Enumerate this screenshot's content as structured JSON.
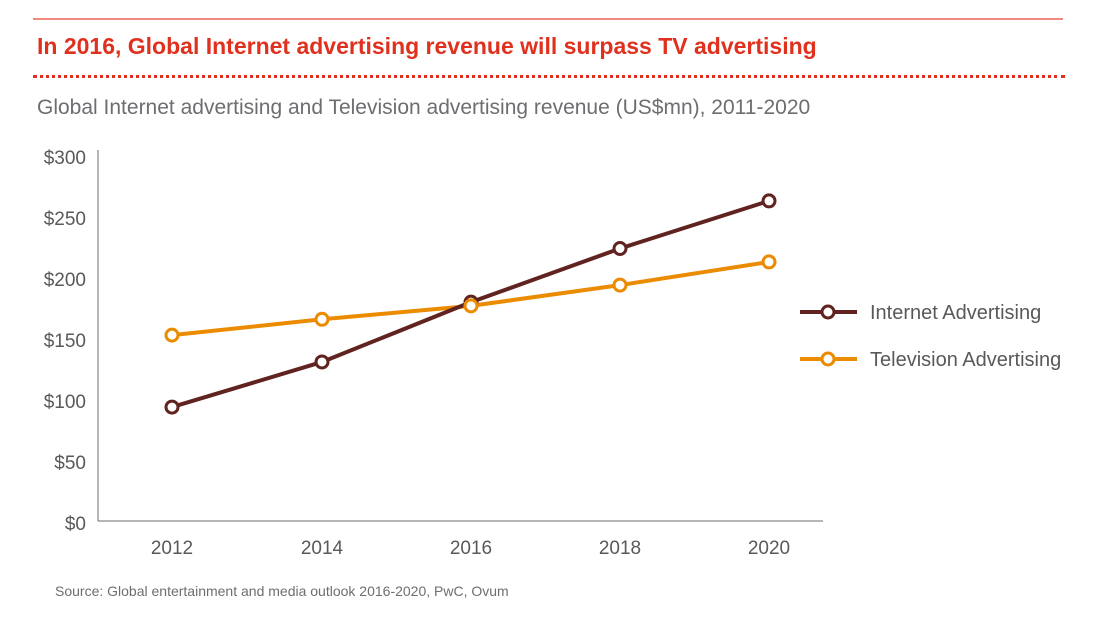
{
  "header": {
    "title": "In 2016, Global Internet advertising revenue will surpass TV advertising",
    "subtitle": "Global Internet advertising and Television advertising revenue (US$mn), 2011-2020"
  },
  "footer": {
    "source": "Source: Global entertainment and media outlook 2016-2020, PwC, Ovum"
  },
  "chart_data": {
    "type": "line",
    "title": "Global Internet advertising and Television advertising revenue (US$mn), 2011-2020",
    "categories": [
      "2012",
      "2014",
      "2016",
      "2018",
      "2020"
    ],
    "yticks": [
      "$0",
      "$50",
      "$100",
      "$150",
      "$200",
      "$250",
      "$300"
    ],
    "ylim": [
      0,
      300
    ],
    "grid": false,
    "legend": "right",
    "series": [
      {
        "name": "Internet Advertising",
        "color": "#602320",
        "values": [
          95,
          132,
          181,
          225,
          264
        ]
      },
      {
        "name": "Television Advertising",
        "color": "#eb8c00",
        "values": [
          154,
          167,
          178,
          195,
          214
        ]
      }
    ]
  }
}
